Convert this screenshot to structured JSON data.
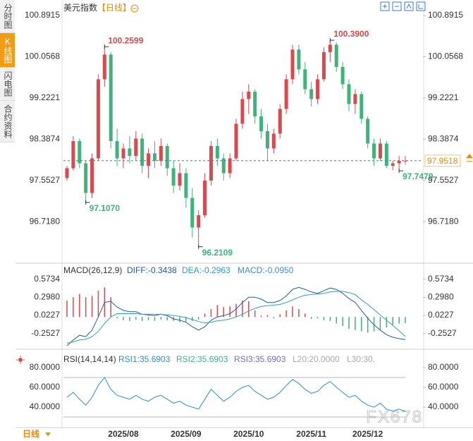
{
  "sidebar_tabs": [
    "分时图",
    "K线图",
    "闪电图",
    "合约资料"
  ],
  "active_tab": "K线图",
  "period_selector": "日线",
  "watermark": "FX678",
  "chart_data": [
    {
      "type": "candlestick",
      "title": "美元指数",
      "period": "【日线】",
      "up_color": "#e0474c",
      "down_color": "#3bb57a",
      "categories": [
        null,
        null,
        null,
        null,
        null,
        null,
        null,
        null,
        null,
        "2025/08",
        null,
        null,
        null,
        null,
        null,
        null,
        null,
        null,
        null,
        "2025/09",
        null,
        null,
        null,
        null,
        null,
        null,
        null,
        null,
        null,
        "2025/10",
        null,
        null,
        null,
        null,
        null,
        null,
        null,
        null,
        null,
        "2025/11",
        null,
        null,
        null,
        null,
        null,
        null,
        null,
        null,
        "2025/12",
        null,
        null,
        null,
        null,
        null,
        null
      ],
      "open": [
        97.6,
        97.8,
        98.35,
        97.9,
        97.3,
        98,
        99.6,
        100.1,
        98.35,
        98,
        98.2,
        98.05,
        98.4,
        97.85,
        98.1,
        97.95,
        98.25,
        97.8,
        97.45,
        97.7,
        97.2,
        96.6,
        96.85,
        97.55,
        98.25,
        98,
        97.7,
        98,
        98.7,
        99.2,
        99.35,
        98.85,
        98.55,
        98.2,
        98.5,
        99,
        99.6,
        100.2,
        99.8,
        99.4,
        99.2,
        99.6,
        100.15,
        100.3,
        99.85,
        99.5,
        99.1,
        99.3,
        98.8,
        98.3,
        98,
        98.3,
        97.85,
        97.9,
        97.95
      ],
      "high": [
        97.85,
        98.45,
        98.4,
        97.95,
        98.1,
        99.7,
        100.2599,
        100.15,
        98.6,
        98.3,
        98.45,
        98.55,
        98.5,
        98.2,
        98.35,
        98.4,
        98.3,
        97.95,
        97.9,
        97.8,
        97.4,
        96.95,
        97.7,
        98.35,
        98.4,
        98.1,
        98.1,
        98.8,
        99.35,
        99.5,
        99.4,
        99,
        98.7,
        98.6,
        99.1,
        99.7,
        100.3,
        100.3,
        99.95,
        99.55,
        99.7,
        100.25,
        100.39,
        100.35,
        99.95,
        99.6,
        99.4,
        99.35,
        98.85,
        98.4,
        98.4,
        98.35,
        97.95,
        98.05,
        98.05
      ],
      "low": [
        97.55,
        97.75,
        97.8,
        97.107,
        97.2,
        97.95,
        99.45,
        98.2,
        97.85,
        97.8,
        97.9,
        97.95,
        97.7,
        97.6,
        97.8,
        97.85,
        97.65,
        97.3,
        97.35,
        97,
        96.4,
        96.2109,
        96.8,
        97.45,
        97.85,
        97.55,
        97.6,
        97.95,
        98.6,
        98.9,
        98.7,
        98.4,
        97.95,
        98.1,
        98.4,
        98.9,
        99.5,
        99.7,
        99.3,
        99.05,
        99.1,
        99.55,
        99.95,
        99.75,
        99.4,
        98.95,
        98.9,
        98.7,
        98.2,
        97.85,
        97.95,
        97.8,
        97.76,
        97.7479,
        97.88
      ],
      "close": [
        97.8,
        98.35,
        97.9,
        97.3,
        98,
        99.6,
        100.1,
        98.35,
        98,
        98.2,
        98.05,
        98.4,
        97.85,
        98.1,
        97.95,
        98.25,
        97.8,
        97.45,
        97.7,
        97.2,
        96.6,
        96.85,
        97.55,
        98.25,
        98,
        97.7,
        98,
        98.7,
        99.2,
        99.35,
        98.85,
        98.55,
        98.2,
        98.5,
        99,
        99.6,
        100.2,
        99.8,
        99.4,
        99.2,
        99.6,
        100.15,
        100.3,
        99.85,
        99.5,
        99.1,
        99.3,
        98.8,
        98.3,
        98,
        98.3,
        97.85,
        97.9,
        97.95,
        97.9518
      ],
      "ylim": [
        95.95,
        101.09
      ],
      "yticks": [
        100.8915,
        100.0568,
        99.2221,
        98.3874,
        97.5527,
        {
          "value": 96.718,
          "label": "96.7180"
        }
      ],
      "extremes": [
        {
          "value": 100.2599,
          "label": "100.2599"
        },
        {
          "value": 100.39,
          "label": "100.3900"
        },
        {
          "value": 97.107,
          "label": "97.1070"
        },
        {
          "value": 96.2109,
          "label": "96.2109"
        },
        {
          "value": 97.7479,
          "label": "97.7479"
        }
      ],
      "last_price": {
        "value": 97.9518,
        "label": "97.9518",
        "color": "#f08a00"
      }
    },
    {
      "type": "macd",
      "title": "MACD(26,12,9)",
      "ylim": [
        -0.46,
        0.7
      ],
      "yticks": [
        0.5734,
        {
          "value": 0.298,
          "label": "0.2980"
        },
        0.0227,
        -0.2527
      ],
      "series": [
        {
          "name": "DIFF:-0.3438",
          "color": "#1f5ea8",
          "values": [
            -0.44,
            -0.35,
            -0.28,
            -0.3,
            -0.2,
            0,
            0.22,
            0.24,
            0.15,
            0.1,
            0.08,
            0.08,
            0.04,
            0.03,
            0.02,
            0.04,
            0.02,
            -0.03,
            -0.05,
            -0.08,
            -0.15,
            -0.2,
            -0.15,
            -0.05,
            0,
            0.02,
            0.05,
            0.12,
            0.22,
            0.3,
            0.3,
            0.27,
            0.22,
            0.22,
            0.25,
            0.32,
            0.42,
            0.45,
            0.42,
            0.38,
            0.36,
            0.4,
            0.44,
            0.42,
            0.36,
            0.28,
            0.22,
            0.1,
            -0.02,
            -0.12,
            -0.2,
            -0.27,
            -0.31,
            -0.33,
            -0.3438
          ]
        },
        {
          "name": "DEA:-0.2963",
          "color": "#2aa1c4",
          "values": [
            -0.4,
            -0.38,
            -0.35,
            -0.34,
            -0.3,
            -0.22,
            -0.1,
            0,
            0.05,
            0.05,
            0.05,
            0.05,
            0.04,
            0.04,
            0.04,
            0.04,
            0.03,
            0.02,
            0.01,
            -0.01,
            -0.04,
            -0.07,
            -0.09,
            -0.08,
            -0.06,
            -0.05,
            -0.03,
            0,
            0.04,
            0.09,
            0.13,
            0.16,
            0.17,
            0.18,
            0.19,
            0.22,
            0.26,
            0.3,
            0.33,
            0.34,
            0.35,
            0.36,
            0.38,
            0.39,
            0.39,
            0.37,
            0.34,
            0.26,
            0.19,
            0.11,
            0.03,
            -0.05,
            -0.13,
            -0.21,
            -0.2963
          ]
        },
        {
          "name": "MACD:-0.0950",
          "color": "#3a8ee6",
          "up_color": "#e0474c",
          "down_color": "#3bb57a",
          "values": [
            0.25,
            0.3,
            0.35,
            0.3,
            0.32,
            0.4,
            0.45,
            0.3,
            -0.02,
            -0.05,
            -0.06,
            -0.04,
            -0.06,
            -0.05,
            -0.06,
            -0.04,
            -0.05,
            -0.06,
            -0.08,
            -0.07,
            -0.06,
            -0.04,
            0.05,
            0.12,
            0.18,
            0.15,
            0.16,
            0.2,
            0.25,
            0.24,
            0.1,
            0.02,
            0.03,
            -0.02,
            0.04,
            0.1,
            0.16,
            0.12,
            0.05,
            -0.03,
            -0.02,
            -0.05,
            -0.06,
            -0.1,
            -0.14,
            -0.18,
            -0.2,
            -0.22,
            -0.24,
            -0.22,
            -0.2,
            -0.16,
            -0.12,
            -0.1,
            -0.095
          ]
        }
      ]
    },
    {
      "type": "rsi",
      "title": "RSI(14,14,14)",
      "ylim": [
        19.3,
        92.9
      ],
      "yticks": [
        {
          "value": 80,
          "label": "80.0000"
        },
        {
          "value": 60,
          "label": "60.0000"
        },
        {
          "value": 40,
          "label": "40.0000"
        }
      ],
      "levels": [
        70,
        30
      ],
      "series": [
        {
          "name": "RSI1:35.6903",
          "color": "#2b8fd6",
          "values": [
            50,
            55,
            48,
            42,
            50,
            62,
            70,
            58,
            52,
            50,
            48,
            52,
            48,
            46,
            50,
            52,
            48,
            44,
            46,
            42,
            40,
            38,
            48,
            58,
            52,
            46,
            50,
            56,
            60,
            62,
            56,
            52,
            48,
            50,
            55,
            62,
            68,
            64,
            58,
            54,
            56,
            62,
            66,
            60,
            55,
            50,
            52,
            46,
            42,
            40,
            44,
            38,
            36,
            38,
            35.6903
          ]
        }
      ],
      "legend_texts": [
        {
          "text": "RSI2:35.6903",
          "color": "#3cb38a"
        },
        {
          "text": "RSI3:35.6903",
          "color": "#6a6fd8"
        },
        {
          "text": "L20:20.0000",
          "color": "#aaaaaa"
        },
        {
          "text": "L30:30.",
          "color": "#aaaaaa"
        }
      ]
    }
  ]
}
